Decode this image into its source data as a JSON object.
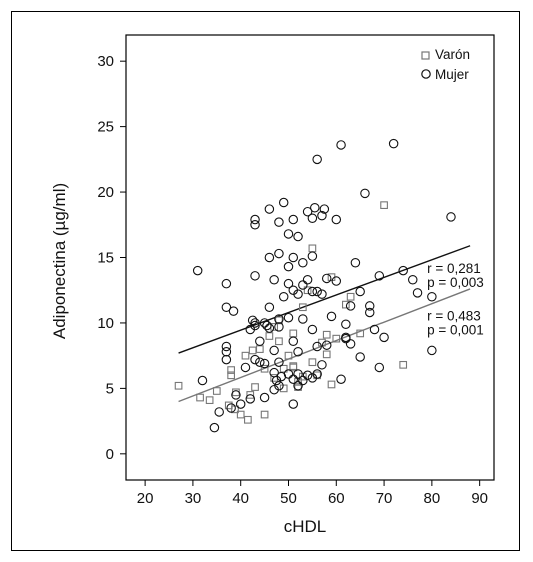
{
  "chart_data": {
    "type": "scatter",
    "xlabel": "cHDL",
    "ylabel": "Adiponectina (µg/ml)",
    "xlim": [
      16,
      93
    ],
    "ylim": [
      -2,
      32
    ],
    "xticks": [
      20,
      30,
      40,
      50,
      60,
      70,
      80,
      90
    ],
    "yticks": [
      0,
      5,
      10,
      15,
      20,
      25,
      30
    ],
    "grid": false,
    "legend_position": "top-right",
    "series": [
      {
        "name": "Varón",
        "marker": "square",
        "color": "#777777",
        "points": [
          [
            27,
            5.2
          ],
          [
            31.5,
            4.3
          ],
          [
            33.5,
            4.1
          ],
          [
            35,
            4.8
          ],
          [
            37.5,
            3.7
          ],
          [
            38,
            6
          ],
          [
            38,
            6.4
          ],
          [
            38.8,
            3.4
          ],
          [
            39,
            4.7
          ],
          [
            40,
            3
          ],
          [
            41,
            7.5
          ],
          [
            41.5,
            2.6
          ],
          [
            42,
            4.5
          ],
          [
            42.5,
            7.9
          ],
          [
            43,
            5.1
          ],
          [
            44,
            8
          ],
          [
            45,
            3
          ],
          [
            45,
            6.5
          ],
          [
            46,
            9
          ],
          [
            47,
            5.8
          ],
          [
            47,
            9.7
          ],
          [
            48,
            8.6
          ],
          [
            48,
            10.2
          ],
          [
            49,
            6.5
          ],
          [
            49,
            5
          ],
          [
            50,
            7.5
          ],
          [
            51,
            9.2
          ],
          [
            51,
            6.6
          ],
          [
            51,
            6.7
          ],
          [
            52,
            5.1
          ],
          [
            52,
            5.5
          ],
          [
            53,
            5.9
          ],
          [
            53,
            11.2
          ],
          [
            54,
            12.5
          ],
          [
            55,
            7
          ],
          [
            55,
            15.7
          ],
          [
            56,
            6
          ],
          [
            57,
            8.5
          ],
          [
            58,
            9.1
          ],
          [
            58,
            7.6
          ],
          [
            59,
            5.3
          ],
          [
            59,
            13.5
          ],
          [
            60,
            8.8
          ],
          [
            62,
            11.4
          ],
          [
            63,
            12
          ],
          [
            65,
            9.2
          ],
          [
            70,
            19
          ],
          [
            74,
            6.8
          ]
        ]
      },
      {
        "name": "Mujer",
        "marker": "circle",
        "color": "#111111",
        "points": [
          [
            31,
            14
          ],
          [
            32,
            5.6
          ],
          [
            34.5,
            2
          ],
          [
            35.5,
            3.2
          ],
          [
            37,
            7.2
          ],
          [
            37,
            7.8
          ],
          [
            37,
            8.2
          ],
          [
            37,
            11.2
          ],
          [
            37,
            13
          ],
          [
            38,
            3.5
          ],
          [
            38.5,
            10.9
          ],
          [
            39,
            4.5
          ],
          [
            40,
            3.8
          ],
          [
            41,
            6.6
          ],
          [
            42,
            4.2
          ],
          [
            42,
            9.5
          ],
          [
            42.5,
            10.2
          ],
          [
            43,
            7.2
          ],
          [
            43,
            9.8
          ],
          [
            43,
            10
          ],
          [
            43,
            13.6
          ],
          [
            43,
            17.5
          ],
          [
            43,
            17.9
          ],
          [
            44,
            7
          ],
          [
            44,
            8.6
          ],
          [
            45,
            4.3
          ],
          [
            45,
            6.9
          ],
          [
            45,
            10
          ],
          [
            45.5,
            9.8
          ],
          [
            46,
            9.6
          ],
          [
            46,
            11.2
          ],
          [
            46,
            15
          ],
          [
            46,
            18.7
          ],
          [
            47,
            4.9
          ],
          [
            47,
            6.2
          ],
          [
            47,
            7.9
          ],
          [
            47,
            13.3
          ],
          [
            47.5,
            5.6
          ],
          [
            48,
            5.2
          ],
          [
            48,
            7
          ],
          [
            48,
            9.7
          ],
          [
            48,
            10.3
          ],
          [
            48,
            15.3
          ],
          [
            48,
            17.7
          ],
          [
            48.5,
            5.9
          ],
          [
            49,
            12
          ],
          [
            49,
            19.2
          ],
          [
            50,
            6.1
          ],
          [
            50,
            10.4
          ],
          [
            50,
            13
          ],
          [
            50,
            14.3
          ],
          [
            50,
            16.8
          ],
          [
            51,
            3.8
          ],
          [
            51,
            5.7
          ],
          [
            51,
            8.6
          ],
          [
            51,
            12.5
          ],
          [
            51,
            15
          ],
          [
            51,
            17.9
          ],
          [
            52,
            5.2
          ],
          [
            52,
            6.1
          ],
          [
            52,
            7.8
          ],
          [
            52,
            12.2
          ],
          [
            52,
            16.6
          ],
          [
            53,
            5.6
          ],
          [
            53,
            10.3
          ],
          [
            53,
            12.9
          ],
          [
            53,
            14.6
          ],
          [
            54,
            6
          ],
          [
            54,
            13.3
          ],
          [
            54,
            18.5
          ],
          [
            55,
            5.8
          ],
          [
            55,
            9.5
          ],
          [
            55,
            12.4
          ],
          [
            55,
            15.1
          ],
          [
            55,
            18
          ],
          [
            55.5,
            18.8
          ],
          [
            56,
            6.1
          ],
          [
            56,
            8.2
          ],
          [
            56,
            12.4
          ],
          [
            56,
            22.5
          ],
          [
            57,
            6.8
          ],
          [
            57,
            12.2
          ],
          [
            57,
            18.2
          ],
          [
            57.5,
            18.7
          ],
          [
            58,
            8.3
          ],
          [
            58,
            13.4
          ],
          [
            59,
            10.5
          ],
          [
            60,
            13.2
          ],
          [
            60,
            17.9
          ],
          [
            61,
            5.7
          ],
          [
            61,
            23.6
          ],
          [
            62,
            8.9
          ],
          [
            62,
            8.8
          ],
          [
            62,
            9.9
          ],
          [
            63,
            8.4
          ],
          [
            63,
            11.3
          ],
          [
            64,
            14.6
          ],
          [
            65,
            7.4
          ],
          [
            65,
            12.4
          ],
          [
            66,
            19.9
          ],
          [
            67,
            11.3
          ],
          [
            67,
            10.8
          ],
          [
            68,
            9.5
          ],
          [
            69,
            6.6
          ],
          [
            69,
            13.6
          ],
          [
            70,
            8.9
          ],
          [
            72,
            23.7
          ],
          [
            74,
            14
          ],
          [
            76,
            13.3
          ],
          [
            77,
            12.3
          ],
          [
            80,
            7.9
          ],
          [
            80,
            12
          ],
          [
            84,
            18.1
          ]
        ]
      }
    ],
    "regression_lines": [
      {
        "group": "Mujer",
        "color": "#111111",
        "x": [
          27,
          88
        ],
        "y": [
          7.7,
          15.9
        ]
      },
      {
        "group": "Varón",
        "color": "#777777",
        "x": [
          27,
          88
        ],
        "y": [
          4.0,
          12.6
        ]
      }
    ],
    "annotations": [
      {
        "group": "Mujer",
        "lines": [
          "r = 0,281",
          "p = 0,003"
        ],
        "x": 79,
        "y": 13.8
      },
      {
        "group": "Varón",
        "lines": [
          "r = 0,483",
          "p = 0,001"
        ],
        "x": 79,
        "y": 10.2
      }
    ]
  }
}
